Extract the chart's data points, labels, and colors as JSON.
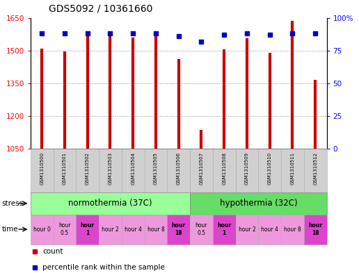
{
  "title": "GDS5092 / 10361660",
  "samples": [
    "GSM1310500",
    "GSM1310501",
    "GSM1310502",
    "GSM1310503",
    "GSM1310504",
    "GSM1310505",
    "GSM1310506",
    "GSM1310507",
    "GSM1310508",
    "GSM1310509",
    "GSM1310510",
    "GSM1310511",
    "GSM1310512"
  ],
  "counts": [
    1510,
    1495,
    1565,
    1570,
    1560,
    1570,
    1460,
    1135,
    1505,
    1555,
    1490,
    1635,
    1365
  ],
  "percentiles": [
    88,
    88,
    88,
    88,
    88,
    88,
    86,
    82,
    87,
    88,
    87,
    88,
    88
  ],
  "ylim_left": [
    1050,
    1650
  ],
  "ylim_right": [
    0,
    100
  ],
  "yticks_left": [
    1050,
    1200,
    1350,
    1500,
    1650
  ],
  "yticks_right": [
    0,
    25,
    50,
    75,
    100
  ],
  "bar_color": "#cc0000",
  "dot_color": "#0000cc",
  "stress_groups": [
    {
      "label": "normothermia (37C)",
      "start": 0,
      "end": 7,
      "color": "#99ff99"
    },
    {
      "label": "hypothermia (32C)",
      "start": 7,
      "end": 13,
      "color": "#66dd66"
    }
  ],
  "time_labels": [
    "hour 0",
    "hour\n0.5",
    "hour\n1",
    "hour 2",
    "hour 4",
    "hour 8",
    "hour\n18",
    "hour\n0.5",
    "hour\n1",
    "hour 2",
    "hour 4",
    "hour 8",
    "hour\n18"
  ],
  "time_bold": [
    false,
    false,
    true,
    false,
    false,
    false,
    true,
    false,
    true,
    false,
    false,
    false,
    true
  ],
  "grid_color": "#888888"
}
